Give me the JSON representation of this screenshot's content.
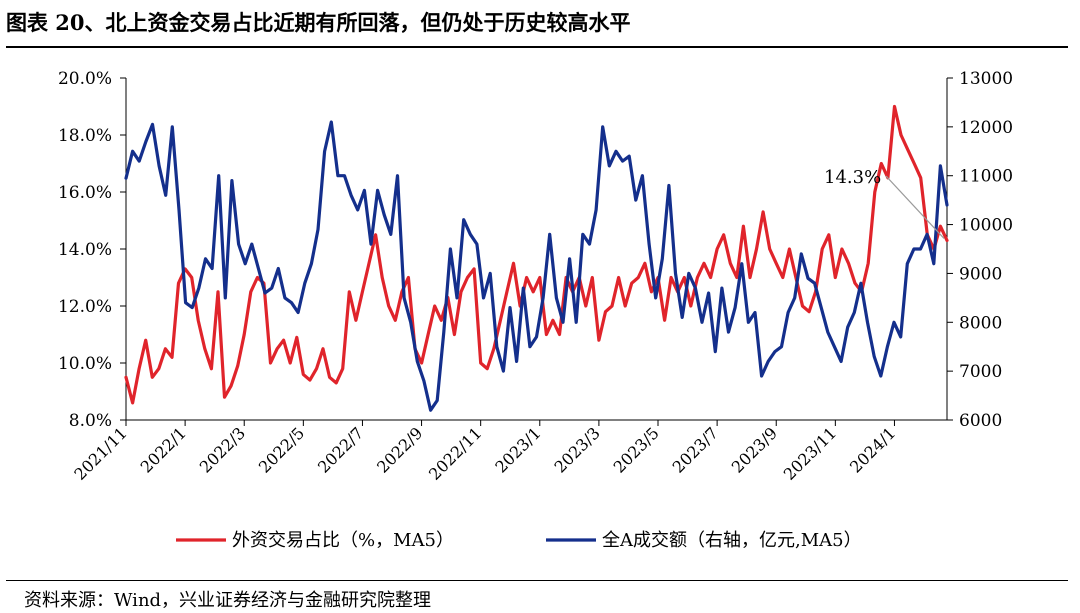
{
  "header": {
    "title": "图表 20、北上资金交易占比近期有所回落，但仍处于历史较高水平"
  },
  "footer": {
    "source": "资料来源：Wind，兴业证券经济与金融研究院整理"
  },
  "colors": {
    "red": "#e0242b",
    "navy": "#142f8c",
    "annotation_line": "#9a9a9a",
    "axis": "#000000"
  },
  "chart_data": {
    "type": "line",
    "title": "图表 20、北上资金交易占比近期有所回落，但仍处于历史较高水平",
    "x_tick_labels": [
      "2021/11",
      "2022/1",
      "2022/3",
      "2022/5",
      "2022/7",
      "2022/9",
      "2022/11",
      "2023/1",
      "2023/3",
      "2023/5",
      "2023/7",
      "2023/9",
      "2023/11",
      "2024/1"
    ],
    "x_range": [
      0,
      125
    ],
    "x_tick_positions": [
      0,
      9,
      18,
      27,
      36,
      45,
      54,
      63,
      72,
      81,
      90,
      99,
      108,
      117
    ],
    "y_left": {
      "min": 8,
      "max": 20,
      "ticks": [
        "8.0%",
        "10.0%",
        "12.0%",
        "14.0%",
        "16.0%",
        "18.0%",
        "20.0%"
      ]
    },
    "y_right": {
      "min": 6000,
      "max": 13000,
      "ticks": [
        "6000",
        "7000",
        "8000",
        "9000",
        "10000",
        "11000",
        "12000",
        "13000"
      ]
    },
    "annotation": {
      "text": "14.3%",
      "series": "外资交易占比（%，MA5）",
      "x": 125,
      "y": 14.3
    },
    "legend": {
      "placement": "bottom",
      "red_label": "外资交易占比（%，MA5）",
      "blue_label": "全A成交额（右轴，亿元,MA5）"
    },
    "series": [
      {
        "name": "外资交易占比（%，MA5）",
        "axis": "left",
        "color": "#e0242b",
        "values": [
          9.5,
          8.6,
          9.8,
          10.8,
          9.5,
          9.8,
          10.5,
          10.2,
          12.8,
          13.3,
          13.0,
          11.5,
          10.5,
          9.8,
          12.5,
          8.8,
          9.2,
          9.9,
          11.0,
          12.5,
          13.0,
          12.8,
          10.0,
          10.5,
          10.8,
          10.0,
          10.9,
          9.6,
          9.4,
          9.8,
          10.5,
          9.5,
          9.3,
          9.8,
          12.5,
          11.5,
          12.5,
          13.5,
          14.5,
          13.0,
          12.0,
          11.5,
          12.5,
          13.0,
          10.5,
          10.0,
          11.0,
          12.0,
          11.5,
          12.3,
          11.0,
          12.5,
          13.0,
          13.3,
          10.0,
          9.8,
          10.5,
          11.5,
          12.5,
          13.5,
          12.0,
          13.0,
          12.5,
          13.0,
          11.0,
          11.5,
          11.0,
          13.0,
          12.5,
          13.0,
          12.0,
          13.0,
          10.8,
          11.8,
          12.0,
          13.0,
          12.0,
          12.8,
          13.0,
          13.5,
          12.5,
          13.0,
          11.5,
          13.0,
          12.5,
          13.0,
          12.0,
          13.0,
          13.5,
          13.0,
          14.0,
          14.5,
          13.5,
          13.0,
          14.8,
          13.0,
          14.0,
          15.3,
          14.0,
          13.5,
          13.0,
          14.0,
          13.0,
          12.0,
          11.8,
          12.5,
          14.0,
          14.5,
          13.0,
          14.0,
          13.5,
          12.8,
          12.5,
          13.5,
          16.0,
          17.0,
          16.5,
          19.0,
          18.0,
          17.5,
          17.0,
          16.5,
          14.5,
          14.0,
          14.8,
          14.3
        ]
      },
      {
        "name": "全A成交额（右轴，亿元,MA5）",
        "axis": "right",
        "color": "#142f8c",
        "values": [
          10950,
          11500,
          11300,
          11700,
          12050,
          11200,
          10600,
          12000,
          10300,
          8400,
          8300,
          8700,
          9300,
          9100,
          11000,
          8500,
          10900,
          9600,
          9200,
          9600,
          9100,
          8600,
          8700,
          9100,
          8500,
          8400,
          8200,
          8800,
          9200,
          9900,
          11500,
          12100,
          11000,
          11000,
          10600,
          10300,
          10700,
          9600,
          10700,
          10200,
          9800,
          11000,
          8500,
          8000,
          7200,
          6800,
          6200,
          6400,
          7800,
          9500,
          8500,
          10100,
          9800,
          9600,
          8500,
          9000,
          7500,
          7000,
          8300,
          7200,
          8700,
          7500,
          7700,
          8500,
          9800,
          8500,
          8000,
          9300,
          8000,
          9800,
          9600,
          10300,
          12000,
          11200,
          11500,
          11300,
          11400,
          10500,
          11000,
          9600,
          8500,
          9300,
          10800,
          9000,
          8100,
          9000,
          8700,
          8000,
          8600,
          7400,
          8700,
          7800,
          8300,
          9200,
          8000,
          8200,
          6900,
          7200,
          7400,
          7500,
          8200,
          8500,
          9400,
          8900,
          8800,
          8300,
          7800,
          7500,
          7200,
          7900,
          8200,
          8800,
          8000,
          7300,
          6900,
          7500,
          8000,
          7700,
          9200,
          9500,
          9500,
          9800,
          9200,
          11200,
          10400
        ]
      }
    ]
  }
}
